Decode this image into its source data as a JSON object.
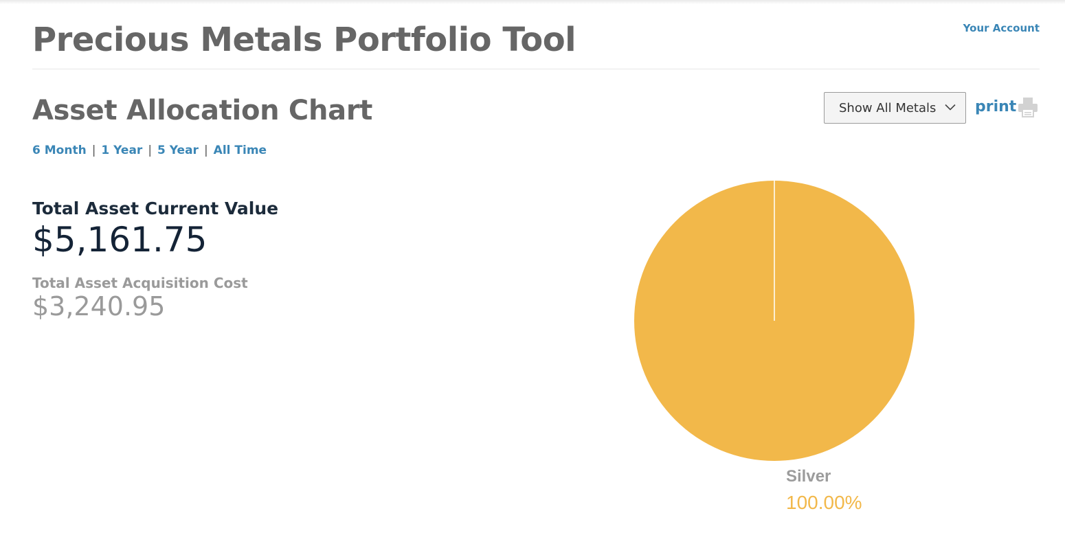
{
  "header": {
    "title": "Precious Metals Portfolio Tool",
    "account_link": "Your Account"
  },
  "section": {
    "title": "Asset Allocation Chart",
    "metal_filter": {
      "selected": "Show All Metals"
    },
    "print_label": "print"
  },
  "time_ranges": [
    "6 Month",
    "1 Year",
    "5 Year",
    "All Time"
  ],
  "range_separator": "|",
  "summary": {
    "current_value_label": "Total Asset Current Value",
    "current_value": "$5,161.75",
    "acquisition_cost_label": "Total Asset Acquisition Cost",
    "acquisition_cost": "$3,240.95"
  },
  "colors": {
    "link": "#3a86b6",
    "silver_slice": "#f2b84a"
  },
  "icons": {
    "filter_chevron": "chevron-down-icon",
    "print": "printer-icon"
  },
  "chart_data": {
    "type": "pie",
    "categories": [
      "Silver"
    ],
    "values": [
      100.0
    ],
    "labels": [
      "100.00%"
    ],
    "colors": [
      "#f2b84a"
    ]
  }
}
